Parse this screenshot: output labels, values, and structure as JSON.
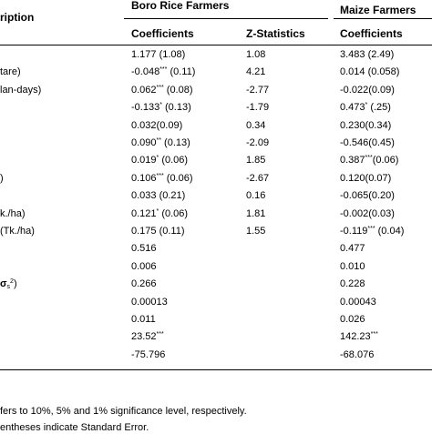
{
  "headers": {
    "description": "ription",
    "group1": "Boro Rice Farmers",
    "group2": "Maize Farmers",
    "col1": "Coefficients",
    "col2": "Z-Statistics",
    "col3": "Coefficients"
  },
  "rows": [
    {
      "label": "",
      "c1": "1.177 (1.08)",
      "c1sup": "",
      "c1b": "",
      "z": "1.08",
      "m": "3.483 (2.49)",
      "msup": "",
      "mb": ""
    },
    {
      "label": "tare)",
      "c1": "-0.048",
      "c1sup": "***",
      "c1b": " (0.11)",
      "z": "4.21",
      "m": "0.014 (0.058)",
      "msup": "",
      "mb": ""
    },
    {
      "label": "lan-days)",
      "c1": "0.062",
      "c1sup": "***",
      "c1b": " (0.08)",
      "z": "-2.77",
      "m": "-0.022(0.09)",
      "msup": "",
      "mb": ""
    },
    {
      "label": "",
      "c1": "-0.133",
      "c1sup": "*",
      "c1b": " (0.13)",
      "z": "-1.79",
      "m": "0.473",
      "msup": "*",
      "mb": " (.25)"
    },
    {
      "label": "",
      "c1": "0.032(0.09)",
      "c1sup": "",
      "c1b": "",
      "z": "0.34",
      "m": "0.230(0.34)",
      "msup": "",
      "mb": ""
    },
    {
      "label": "",
      "c1": "0.090",
      "c1sup": "**",
      "c1b": " (0.13)",
      "z": "-2.09",
      "m": "-0.546(0.45)",
      "msup": "",
      "mb": ""
    },
    {
      "label": "",
      "c1": "0.019",
      "c1sup": "*",
      "c1b": " (0.06)",
      "z": "1.85",
      "m": "0.387",
      "msup": "***",
      "mb": "(0.06)"
    },
    {
      "label": ")",
      "c1": "0.106",
      "c1sup": "***",
      "c1b": " (0.06)",
      "z": "-2.67",
      "m": "0.120(0.07)",
      "msup": "",
      "mb": ""
    },
    {
      "label": "",
      "c1": "0.033 (0.21)",
      "c1sup": "",
      "c1b": "",
      "z": "0.16",
      "m": "-0.065(0.20)",
      "msup": "",
      "mb": ""
    },
    {
      "label": "k./ha)",
      "c1": "0.121",
      "c1sup": "*",
      "c1b": " (0.06)",
      "z": "1.81",
      "m": "-0.002(0.03)",
      "msup": "",
      "mb": ""
    },
    {
      "label": "(Tk./ha)",
      "c1": "0.175 (0.11)",
      "c1sup": "",
      "c1b": "",
      "z": "1.55",
      "m": "-0.119",
      "msup": "***",
      "mb": " (0.04)"
    },
    {
      "label": "",
      "c1": "0.516",
      "c1sup": "",
      "c1b": "",
      "z": "",
      "m": "0.477",
      "msup": "",
      "mb": ""
    },
    {
      "label": "",
      "c1": "0.006",
      "c1sup": "",
      "c1b": "",
      "z": "",
      "m": "0.010",
      "msup": "",
      "mb": ""
    },
    {
      "label": "σs2)",
      "c1": "0.266",
      "c1sup": "",
      "c1b": "",
      "z": "",
      "m": "0.228",
      "msup": "",
      "mb": ""
    },
    {
      "label": "",
      "c1": "0.00013",
      "c1sup": "",
      "c1b": "",
      "z": "",
      "m": "0.00043",
      "msup": "",
      "mb": ""
    },
    {
      "label": "",
      "c1": "0.011",
      "c1sup": "",
      "c1b": "",
      "z": "",
      "m": "0.026",
      "msup": "",
      "mb": ""
    },
    {
      "label": "",
      "c1": "23.52",
      "c1sup": "***",
      "c1b": "",
      "z": "",
      "m": "142.23",
      "msup": "***",
      "mb": ""
    },
    {
      "label": "",
      "c1": "-75.796",
      "c1sup": "",
      "c1b": "",
      "z": "",
      "m": "-68.076",
      "msup": "",
      "mb": ""
    }
  ],
  "notes": {
    "line1": "fers to 10%, 5% and 1% significance level, respectively.",
    "line2": "entheses indicate Standard Error."
  }
}
